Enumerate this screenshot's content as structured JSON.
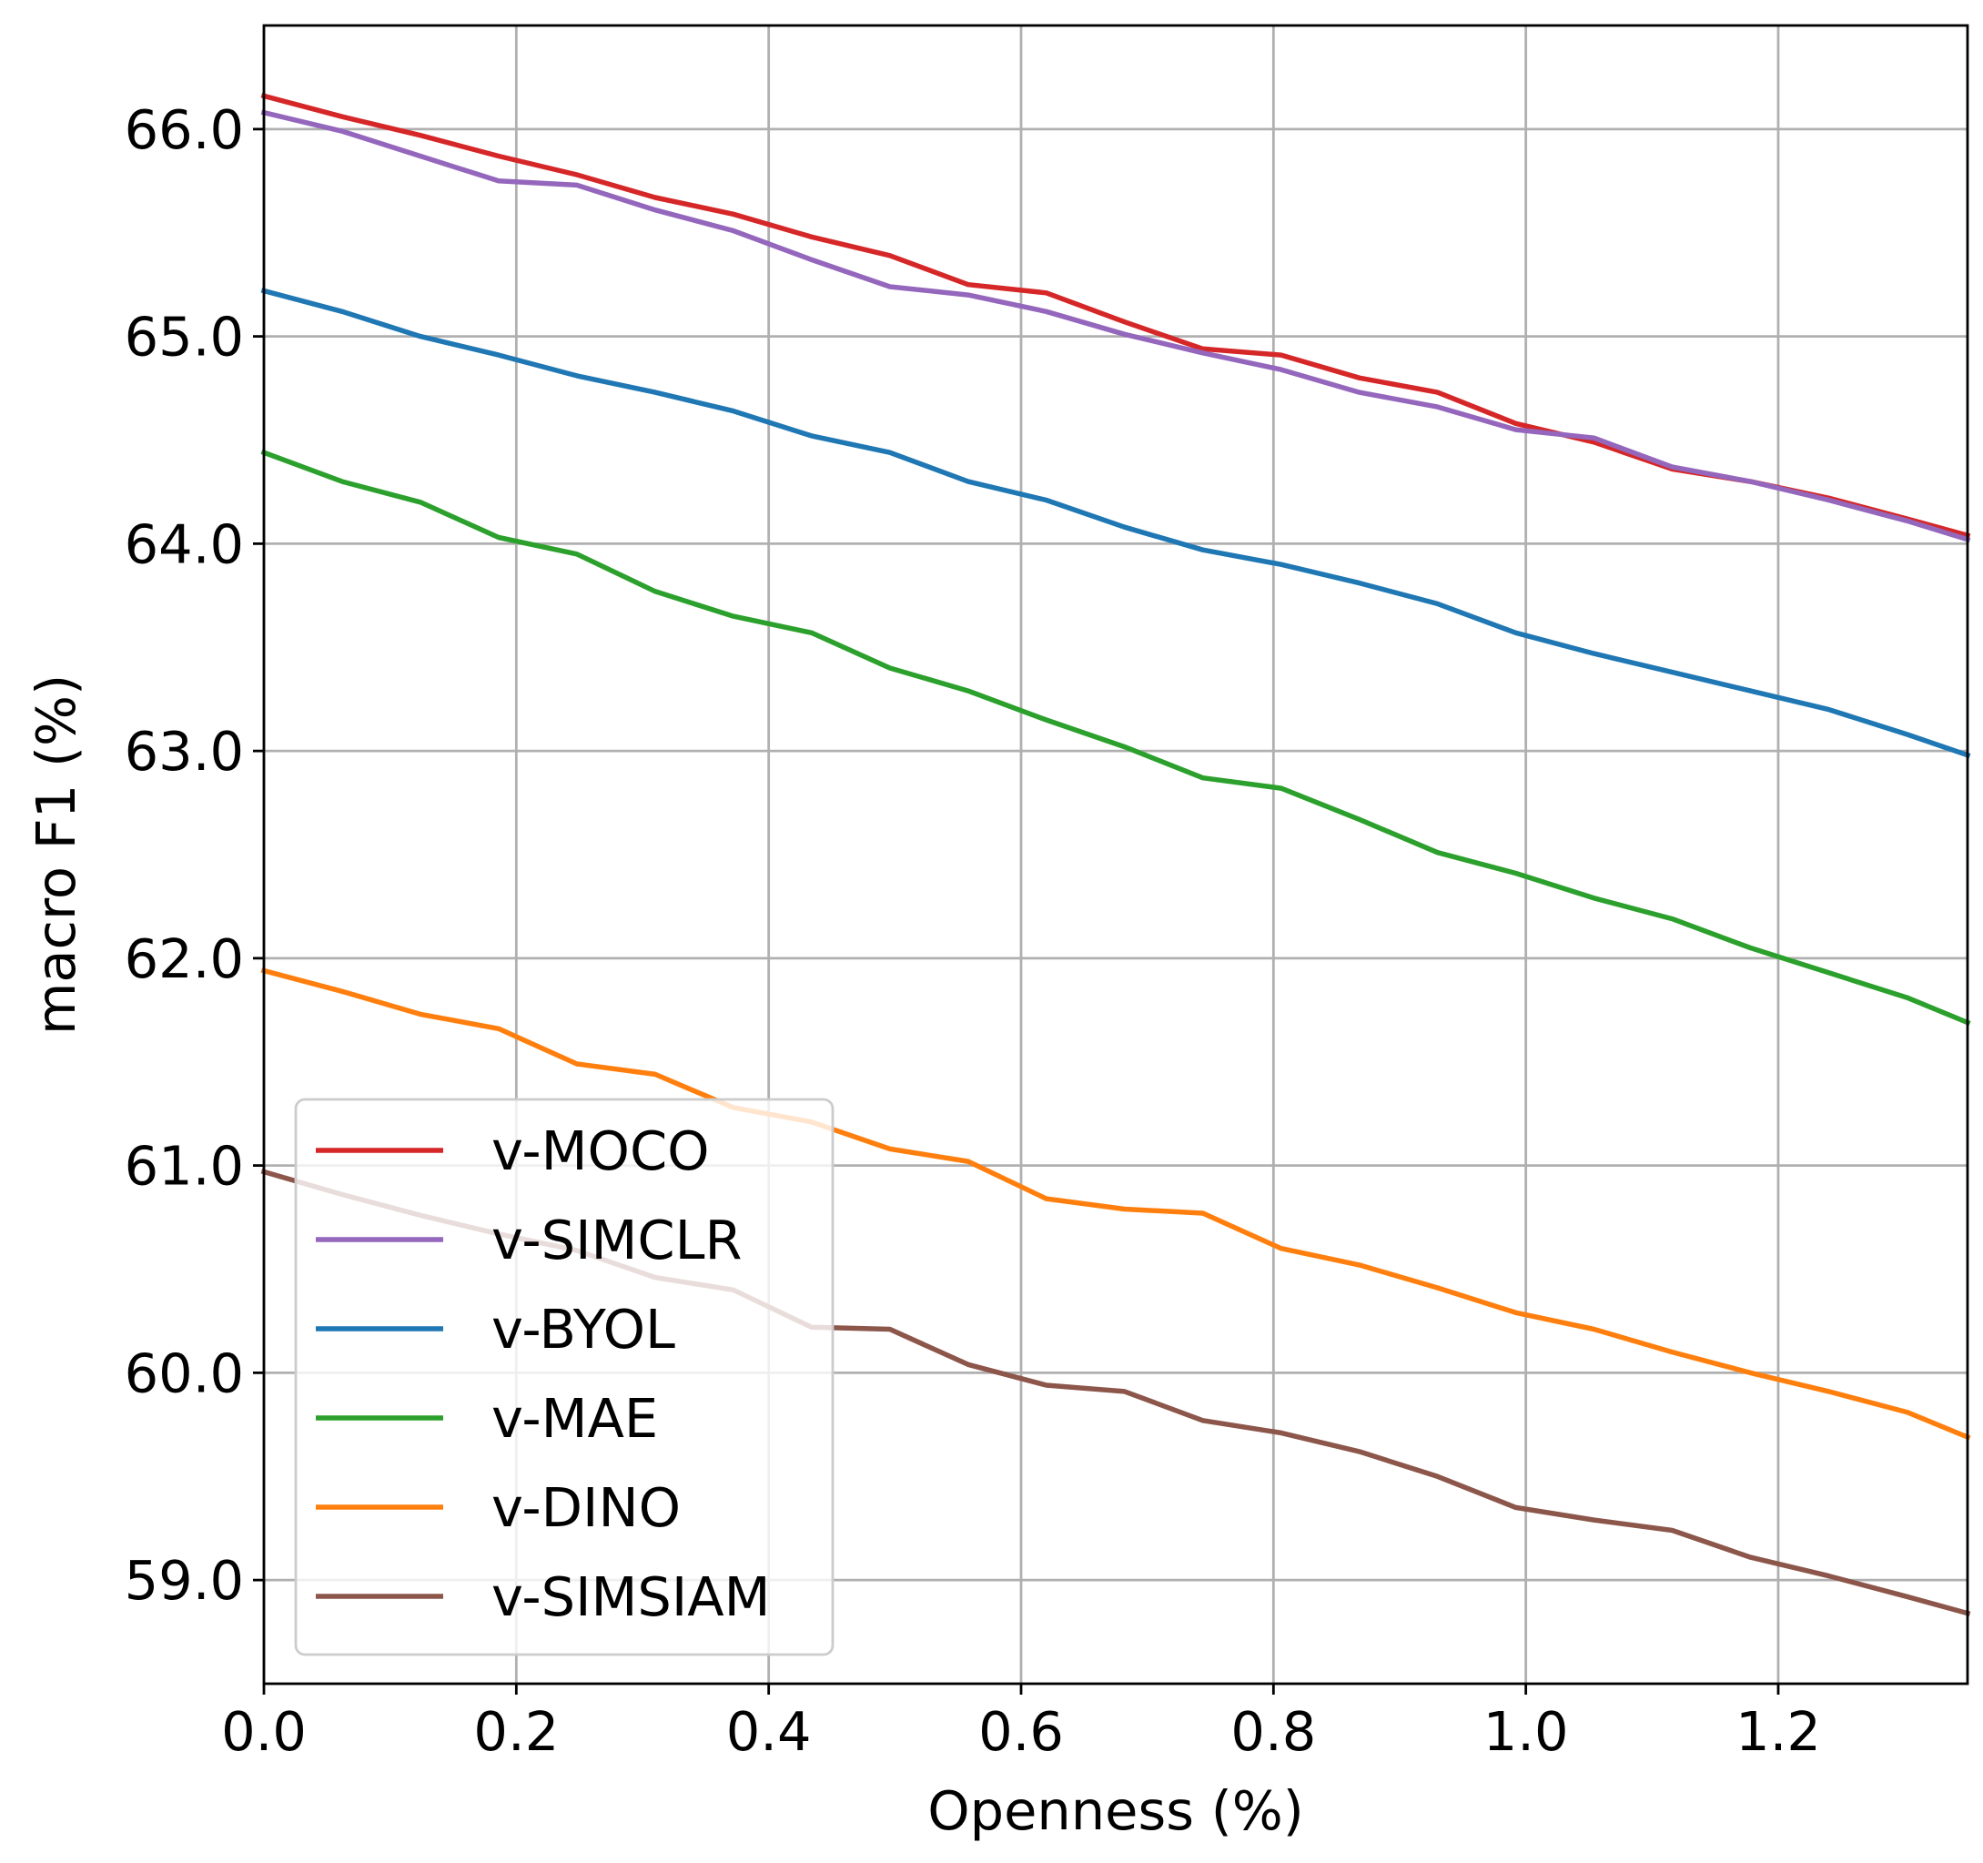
{
  "chart_data": {
    "type": "line",
    "title": "",
    "xlabel": "Openness (%)",
    "ylabel": "macro F1 (%)",
    "xlim": [
      0.0,
      1.35
    ],
    "ylim": [
      58.5,
      66.5
    ],
    "xticks": [
      0.0,
      0.2,
      0.4,
      0.6,
      0.8,
      1.0,
      1.2
    ],
    "xtick_labels": [
      "0.0",
      "0.2",
      "0.4",
      "0.6",
      "0.8",
      "1.0",
      "1.2"
    ],
    "yticks": [
      59.0,
      60.0,
      61.0,
      62.0,
      63.0,
      64.0,
      65.0,
      66.0
    ],
    "ytick_labels": [
      "59.0",
      "60.0",
      "61.0",
      "62.0",
      "63.0",
      "64.0",
      "65.0",
      "66.0"
    ],
    "grid": true,
    "legend_position": "lower-left",
    "x": [
      0.0,
      0.062,
      0.124,
      0.186,
      0.248,
      0.31,
      0.372,
      0.434,
      0.496,
      0.558,
      0.62,
      0.682,
      0.744,
      0.806,
      0.868,
      0.93,
      0.992,
      1.054,
      1.116,
      1.178,
      1.24,
      1.302,
      1.35
    ],
    "series": [
      {
        "name": "v-MOCO",
        "color": "#d62728",
        "values": [
          66.16,
          66.06,
          65.97,
          65.87,
          65.78,
          65.67,
          65.59,
          65.48,
          65.39,
          65.25,
          65.21,
          65.07,
          64.94,
          64.91,
          64.8,
          64.73,
          64.58,
          64.49,
          64.36,
          64.3,
          64.22,
          64.12,
          64.04
        ]
      },
      {
        "name": "v-SIMCLR",
        "color": "#9467bd",
        "values": [
          66.08,
          65.99,
          65.87,
          65.75,
          65.73,
          65.61,
          65.51,
          65.37,
          65.24,
          65.2,
          65.12,
          65.01,
          64.92,
          64.84,
          64.73,
          64.66,
          64.55,
          64.51,
          64.37,
          64.3,
          64.21,
          64.11,
          64.02
        ]
      },
      {
        "name": "v-BYOL",
        "color": "#1f77b4",
        "values": [
          65.22,
          65.12,
          65.0,
          64.91,
          64.81,
          64.73,
          64.64,
          64.52,
          64.44,
          64.3,
          64.21,
          64.08,
          63.97,
          63.9,
          63.81,
          63.71,
          63.57,
          63.47,
          63.38,
          63.29,
          63.2,
          63.08,
          62.98
        ]
      },
      {
        "name": "v-MAE",
        "color": "#2ca02c",
        "values": [
          64.44,
          64.3,
          64.2,
          64.03,
          63.95,
          63.77,
          63.65,
          63.57,
          63.4,
          63.29,
          63.15,
          63.02,
          62.87,
          62.82,
          62.67,
          62.51,
          62.41,
          62.29,
          62.19,
          62.05,
          61.93,
          61.81,
          61.69
        ]
      },
      {
        "name": "v-DINO",
        "color": "#ff7f0e",
        "values": [
          61.94,
          61.84,
          61.73,
          61.66,
          61.49,
          61.44,
          61.28,
          61.21,
          61.08,
          61.02,
          60.84,
          60.79,
          60.77,
          60.6,
          60.52,
          60.41,
          60.29,
          60.21,
          60.1,
          60.0,
          59.91,
          59.81,
          59.69
        ]
      },
      {
        "name": "v-SIMSIAM",
        "color": "#8c564b",
        "values": [
          60.97,
          60.86,
          60.76,
          60.67,
          60.59,
          60.46,
          60.4,
          60.22,
          60.21,
          60.04,
          59.94,
          59.91,
          59.77,
          59.71,
          59.62,
          59.5,
          59.35,
          59.29,
          59.24,
          59.11,
          59.02,
          58.92,
          58.84
        ]
      }
    ]
  }
}
